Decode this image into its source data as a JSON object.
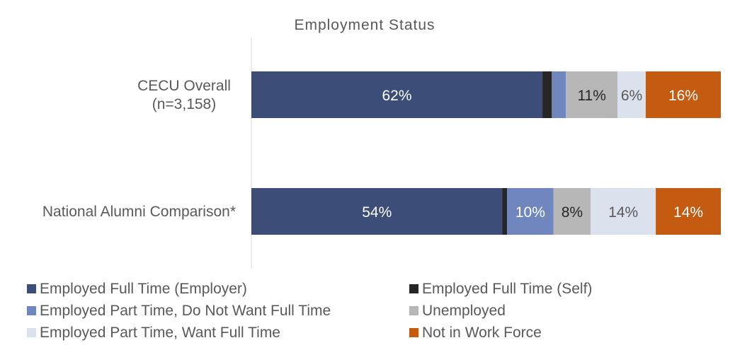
{
  "chart_data": {
    "type": "bar",
    "orientation": "horizontal",
    "stacked": true,
    "percent_stacked": true,
    "title": "Employment Status",
    "xlabel": "",
    "ylabel": "",
    "xlim": [
      0,
      100
    ],
    "grid": false,
    "legend_position": "bottom",
    "categories": [
      "CECU Overall\n(n=3,158)",
      "National Alumni Comparison*"
    ],
    "series": [
      {
        "name": "Employed Full Time (Employer)",
        "color": "#3C4E78",
        "values": [
          62,
          54
        ],
        "labels": [
          "62%",
          "54%"
        ]
      },
      {
        "name": "Employed Full Time (Self)",
        "color": "#262626",
        "values": [
          2,
          1
        ],
        "labels": [
          "",
          ""
        ]
      },
      {
        "name": "Employed Part Time, Do Not Want Full Time",
        "color": "#6F87BE",
        "values": [
          3,
          10
        ],
        "labels": [
          "",
          "10%"
        ]
      },
      {
        "name": "Unemployed",
        "color": "#B7B7B7",
        "values": [
          11,
          8
        ],
        "labels": [
          "11%",
          "8%"
        ]
      },
      {
        "name": "Employed Part Time, Want Full Time",
        "color": "#DCE1EE",
        "values": [
          6,
          14
        ],
        "labels": [
          "6%",
          "14%"
        ]
      },
      {
        "name": "Not in Work Force",
        "color": "#C55A11",
        "values": [
          16,
          14
        ],
        "labels": [
          "16%",
          "14%"
        ]
      }
    ]
  }
}
